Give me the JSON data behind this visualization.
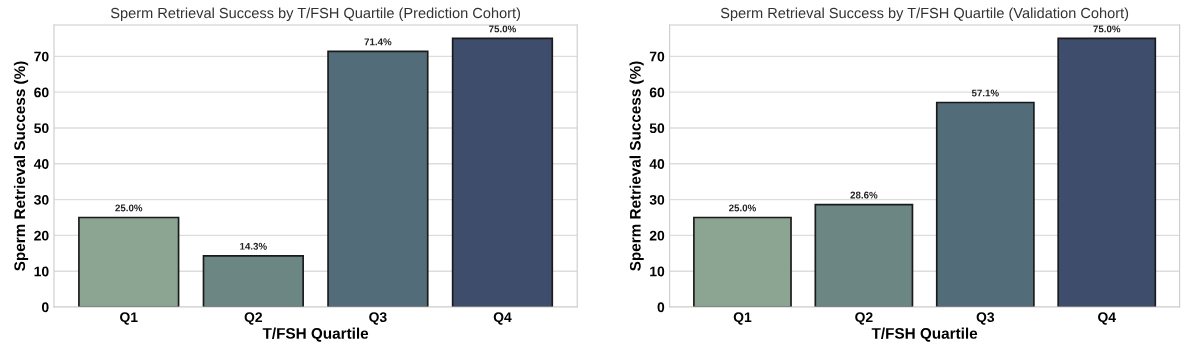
{
  "chart_data": [
    {
      "type": "bar",
      "title": "Sperm Retrieval Success by T/FSH Quartile (Prediction Cohort)",
      "xlabel": "T/FSH Quartile",
      "ylabel": "Sperm Retrieval Success (%)",
      "categories": [
        "Q1",
        "Q2",
        "Q3",
        "Q4"
      ],
      "values": [
        25.0,
        14.3,
        71.4,
        75.0
      ],
      "value_labels": [
        "25.0%",
        "14.3%",
        "71.4%",
        "75.0%"
      ],
      "colors": [
        "#8ca592",
        "#6b8683",
        "#526c7a",
        "#3f4d6c"
      ],
      "ylim": [
        0,
        78.75
      ],
      "yticks": [
        0,
        10,
        20,
        30,
        40,
        50,
        60,
        70
      ],
      "grid": "y"
    },
    {
      "type": "bar",
      "title": "Sperm Retrieval Success by T/FSH Quartile (Validation Cohort)",
      "xlabel": "T/FSH Quartile",
      "ylabel": "Sperm Retrieval Success (%)",
      "categories": [
        "Q1",
        "Q2",
        "Q3",
        "Q4"
      ],
      "values": [
        25.0,
        28.6,
        57.1,
        75.0
      ],
      "value_labels": [
        "25.0%",
        "28.6%",
        "57.1%",
        "75.0%"
      ],
      "colors": [
        "#8ca592",
        "#6b8683",
        "#526c7a",
        "#3f4d6c"
      ],
      "ylim": [
        0,
        78.75
      ],
      "yticks": [
        0,
        10,
        20,
        30,
        40,
        50,
        60,
        70
      ],
      "grid": "y"
    }
  ]
}
